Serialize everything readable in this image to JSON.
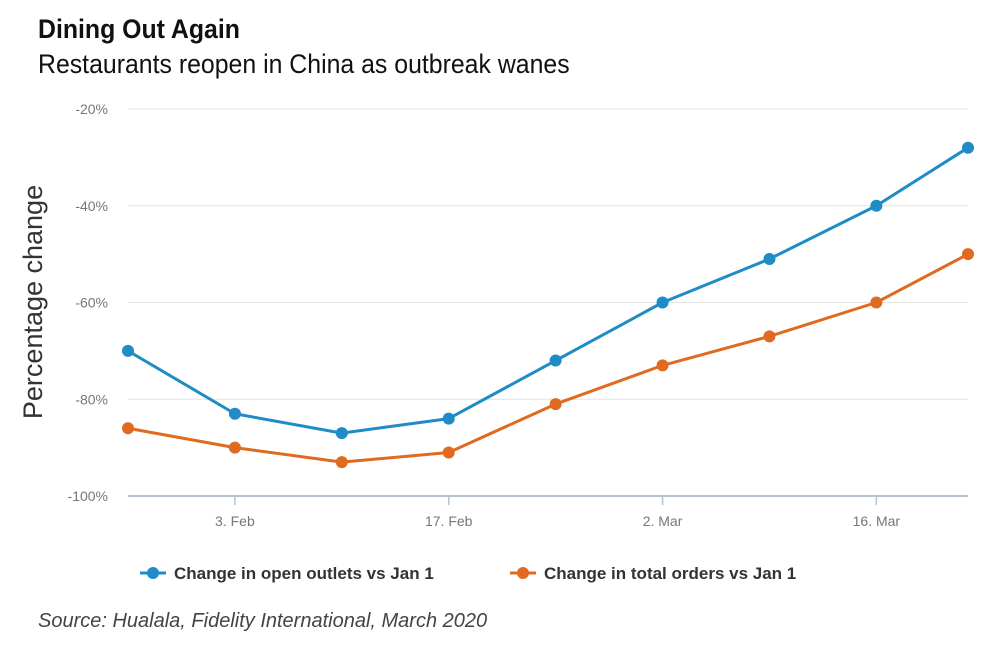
{
  "title": "Dining Out Again",
  "subtitle": "Restaurants reopen in China as outbreak wanes",
  "source": "Source: Hualala, Fidelity International, March 2020",
  "chart_data": {
    "type": "line",
    "title": "Dining Out Again",
    "subtitle": "Restaurants reopen in China as outbreak wanes",
    "xlabel": "",
    "ylabel": "Percentage change",
    "ylim": [
      -100,
      -20
    ],
    "yticks": [
      -20,
      -40,
      -60,
      -80,
      -100
    ],
    "ytick_labels": [
      "-20%",
      "-40%",
      "-60%",
      "-80%",
      "-100%"
    ],
    "x": [
      "2020-01-27",
      "2020-02-03",
      "2020-02-10",
      "2020-02-17",
      "2020-02-24",
      "2020-03-02",
      "2020-03-09",
      "2020-03-16",
      "2020-03-22"
    ],
    "x_range": [
      "2020-01-27",
      "2020-03-22"
    ],
    "xticks": [
      "2020-02-03",
      "2020-02-17",
      "2020-03-02",
      "2020-03-16"
    ],
    "xtick_labels": [
      "3. Feb",
      "17. Feb",
      "2. Mar",
      "16. Mar"
    ],
    "grid": true,
    "legend_position": "bottom",
    "series": [
      {
        "name": "Change in open outlets vs Jan 1",
        "color": "#1f8bc7",
        "values": [
          -70,
          -83,
          -87,
          -84,
          -72,
          -60,
          -51,
          -40,
          -28
        ]
      },
      {
        "name": "Change in total orders vs Jan 1",
        "color": "#e06a1f",
        "values": [
          -86,
          -90,
          -93,
          -91,
          -81,
          -73,
          -67,
          -60,
          -50
        ]
      }
    ]
  }
}
